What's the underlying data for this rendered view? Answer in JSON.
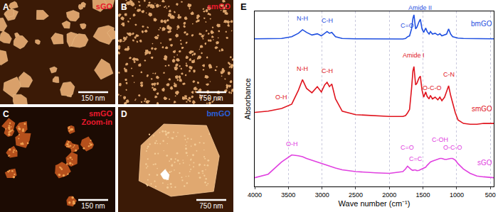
{
  "panels": [
    {
      "label": "A",
      "sample": [
        "sGO"
      ],
      "sample_color": "#e8192c",
      "scale_bar": "150 nm"
    },
    {
      "label": "B",
      "sample": [
        "smGO"
      ],
      "sample_color": "#e8192c",
      "scale_bar": "750 nm"
    },
    {
      "label": "C",
      "sample": [
        "smGO",
        "Zoom-in"
      ],
      "sample_color": "#e8192c",
      "scale_bar": "150 nm"
    },
    {
      "label": "D",
      "sample": [
        "bmGO"
      ],
      "sample_color": "#2a5fd6",
      "scale_bar": "750 nm"
    }
  ],
  "chart_data": {
    "type": "line",
    "label": "E",
    "xlabel": "Wave number (cm⁻¹)",
    "ylabel": "Absorbance",
    "xlim": [
      4000,
      450
    ],
    "xticks": [
      4000,
      3500,
      3000,
      2500,
      2000,
      1500,
      1000,
      500
    ],
    "ylim": [
      0,
      10
    ],
    "tick_labels": "x",
    "grid": true,
    "x": [
      4000,
      3800,
      3600,
      3450,
      3350,
      3290,
      3230,
      3150,
      3070,
      3010,
      2960,
      2925,
      2890,
      2855,
      2800,
      2700,
      2500,
      2200,
      2000,
      1800,
      1760,
      1730,
      1700,
      1670,
      1650,
      1635,
      1610,
      1590,
      1560,
      1540,
      1515,
      1490,
      1460,
      1440,
      1410,
      1390,
      1360,
      1320,
      1280,
      1250,
      1220,
      1180,
      1150,
      1120,
      1090,
      1060,
      1020,
      980,
      900,
      800,
      700,
      600,
      500,
      450
    ],
    "series": [
      {
        "name": "bmGO",
        "color": "#1f4fe0",
        "values": [
          8.43,
          8.43,
          8.45,
          8.55,
          8.75,
          8.95,
          8.8,
          8.65,
          8.72,
          8.6,
          8.75,
          8.85,
          8.75,
          8.8,
          8.55,
          8.45,
          8.43,
          8.42,
          8.42,
          8.42,
          8.45,
          8.55,
          8.6,
          9.0,
          9.6,
          9.8,
          9.0,
          9.1,
          9.4,
          9.55,
          9.0,
          8.8,
          9.05,
          8.85,
          8.7,
          8.85,
          8.7,
          8.75,
          8.65,
          8.72,
          8.6,
          8.65,
          8.7,
          9.0,
          8.7,
          8.55,
          8.5,
          8.47,
          8.45,
          8.45,
          8.45,
          8.44,
          8.43,
          8.43
        ]
      },
      {
        "name": "smGO",
        "color": "#e0141e",
        "values": [
          4.23,
          4.3,
          4.45,
          4.7,
          5.5,
          6.1,
          5.6,
          5.35,
          5.7,
          5.4,
          5.8,
          5.95,
          5.7,
          5.85,
          5.0,
          4.3,
          4.1,
          4.05,
          4.0,
          4.0,
          4.05,
          4.2,
          4.4,
          5.6,
          6.6,
          6.85,
          5.8,
          5.9,
          6.2,
          6.3,
          5.5,
          5.1,
          5.4,
          5.15,
          5.0,
          5.2,
          5.0,
          5.1,
          4.95,
          5.1,
          4.9,
          5.1,
          5.4,
          5.75,
          5.2,
          4.8,
          4.2,
          3.8,
          3.6,
          3.55,
          3.55,
          3.6,
          3.6,
          3.6
        ]
      },
      {
        "name": "sGO",
        "color": "#e040e0",
        "values": [
          0.5,
          0.7,
          1.4,
          1.8,
          1.75,
          1.7,
          1.6,
          1.5,
          1.4,
          1.3,
          1.25,
          1.2,
          1.15,
          1.1,
          1.05,
          0.95,
          0.85,
          0.78,
          0.75,
          0.85,
          1.0,
          1.16,
          1.05,
          0.95,
          0.92,
          0.94,
          0.94,
          0.9,
          0.92,
          0.95,
          1.0,
          1.05,
          1.1,
          1.2,
          1.3,
          1.4,
          1.45,
          1.5,
          1.55,
          1.6,
          1.6,
          1.55,
          1.55,
          1.58,
          1.6,
          1.6,
          1.5,
          1.3,
          1.0,
          0.75,
          0.6,
          0.55,
          0.5,
          0.5
        ]
      }
    ],
    "annotations": [
      {
        "text": "N-H",
        "x": 3290,
        "series": "bmGO"
      },
      {
        "text": "C-H",
        "x": 2925,
        "series": "bmGO"
      },
      {
        "text": "Amide II",
        "x": 1540,
        "series": "bmGO"
      },
      {
        "text": "C=O",
        "x": 1730,
        "series": "bmGO"
      },
      {
        "text": "O-H",
        "x": 3600,
        "series": "smGO"
      },
      {
        "text": "N-H",
        "x": 3290,
        "series": "smGO"
      },
      {
        "text": "C-H",
        "x": 2925,
        "series": "smGO"
      },
      {
        "text": "Amide I",
        "x": 1635,
        "series": "smGO"
      },
      {
        "text": "O-C-O",
        "x": 1360,
        "series": "smGO"
      },
      {
        "text": "C-N",
        "x": 1120,
        "series": "smGO"
      },
      {
        "text": "O-H",
        "x": 3450,
        "series": "sGO"
      },
      {
        "text": "C=C",
        "x": 1610,
        "series": "sGO"
      },
      {
        "text": "C=O",
        "x": 1730,
        "series": "sGO"
      },
      {
        "text": "O-C-O",
        "x": 1060,
        "series": "sGO"
      },
      {
        "text": "C-OH",
        "x": 1250,
        "series": "sGO"
      }
    ]
  }
}
